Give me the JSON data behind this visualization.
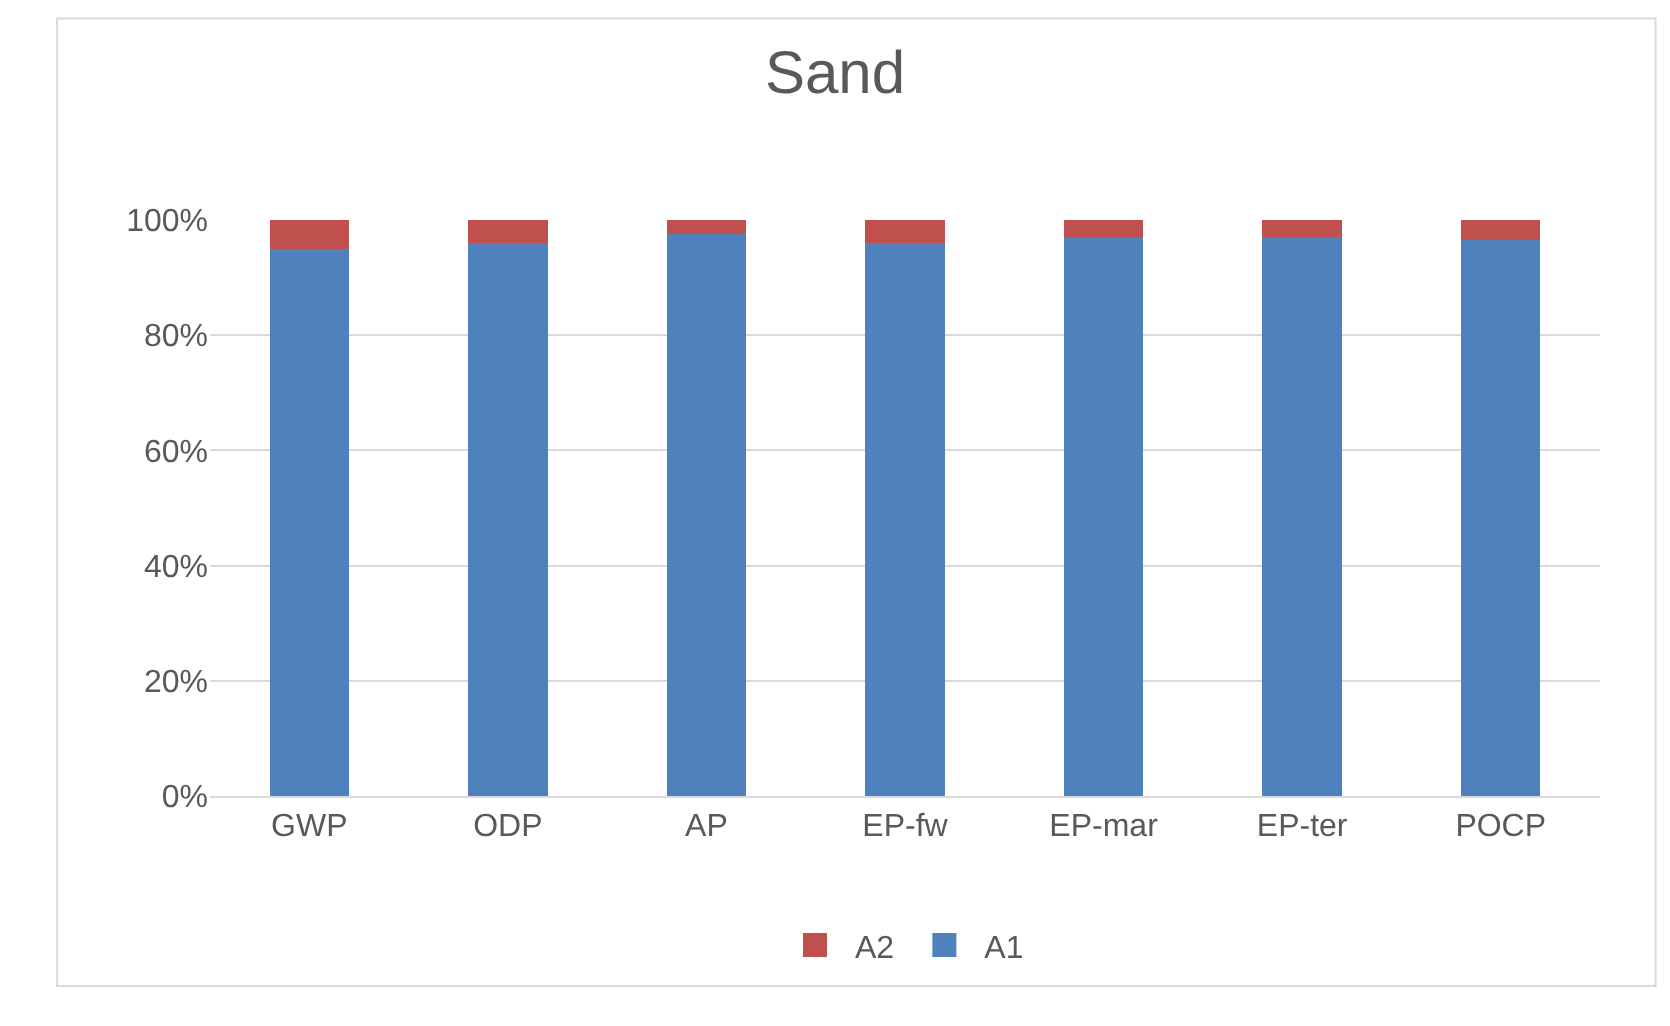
{
  "chart_data": {
    "type": "bar",
    "title": "Sand",
    "stacked": true,
    "categories": [
      "GWP",
      "ODP",
      "AP",
      "EP-fw",
      "EP-mar",
      "EP-ter",
      "POCP"
    ],
    "series": [
      {
        "name": "A1",
        "color": "#4f81bd",
        "values": [
          95,
          96,
          97.5,
          96,
          97,
          97,
          96.5
        ]
      },
      {
        "name": "A2",
        "color": "#c0504d",
        "values": [
          5,
          4,
          2.5,
          4,
          3,
          3,
          3.5
        ]
      }
    ],
    "ylim": [
      0,
      100
    ],
    "yticks": [
      {
        "value": 0,
        "label": "0%"
      },
      {
        "value": 20,
        "label": "20%"
      },
      {
        "value": 40,
        "label": "40%"
      },
      {
        "value": 60,
        "label": "60%"
      },
      {
        "value": 80,
        "label": "80%"
      },
      {
        "value": 100,
        "label": "100%"
      }
    ],
    "grid": "y",
    "legend": "bottom"
  }
}
